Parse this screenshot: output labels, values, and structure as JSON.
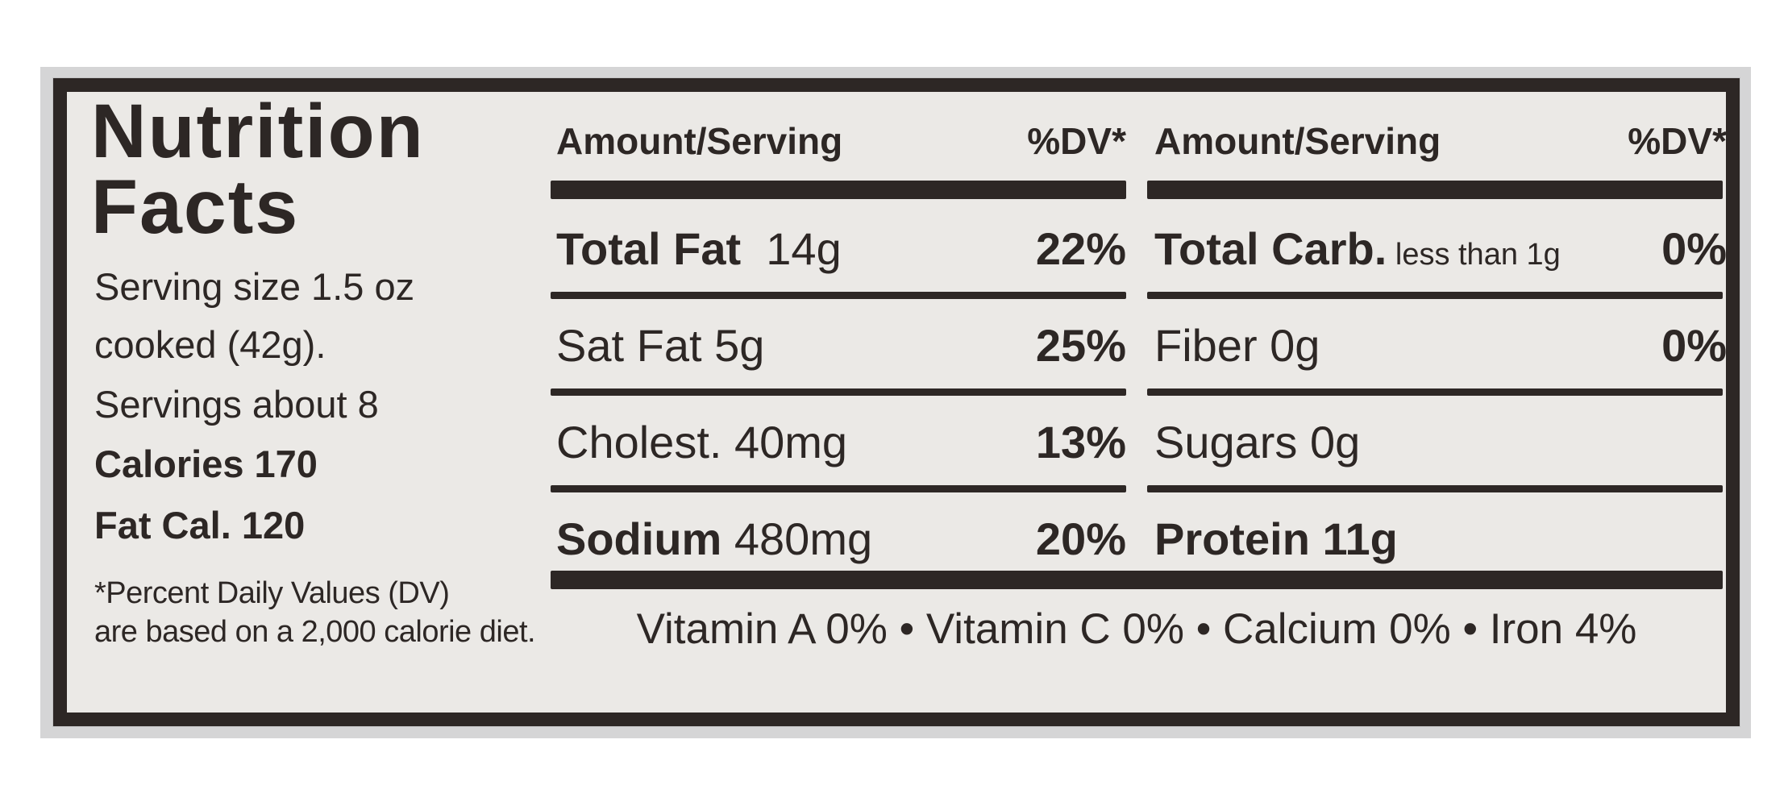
{
  "colors": {
    "ink": "#2d2725",
    "paper": "#ebe9e6",
    "backdrop": "#d5d5d6",
    "page": "#ffffff"
  },
  "label": {
    "title_line1": "Nutrition",
    "title_line2": "Facts",
    "serving_size_line1": "Serving size 1.5 oz",
    "serving_size_line2": "cooked (42g).",
    "servings": "Servings about 8",
    "calories": "Calories 170",
    "fat_calories": "Fat Cal. 120",
    "footnote_line1": "*Percent Daily Values (DV)",
    "footnote_line2": "are based on a 2,000 calorie diet.",
    "vitamins": "Vitamin A 0% • Vitamin C 0% • Calcium 0% • Iron 4%",
    "columns": [
      {
        "header_amount": "Amount/Serving",
        "header_dv": "%DV*",
        "rows": [
          {
            "bold": "Total Fat",
            "reg": "  14g",
            "small": "",
            "dv": "22%"
          },
          {
            "bold": "",
            "reg": "Sat Fat 5g",
            "small": "",
            "dv": "25%"
          },
          {
            "bold": "",
            "reg": "Cholest. 40mg",
            "small": "",
            "dv": "13%"
          },
          {
            "bold": "Sodium",
            "reg": " 480mg",
            "small": "",
            "dv": "20%"
          }
        ]
      },
      {
        "header_amount": "Amount/Serving",
        "header_dv": "%DV*",
        "rows": [
          {
            "bold": "Total Carb.",
            "reg": "",
            "small": " less than 1g",
            "dv": "0%"
          },
          {
            "bold": "",
            "reg": "Fiber 0g",
            "small": "",
            "dv": "0%"
          },
          {
            "bold": "",
            "reg": "Sugars 0g",
            "small": "",
            "dv": ""
          },
          {
            "bold": "Protein 11g",
            "reg": "",
            "small": "",
            "dv": ""
          }
        ]
      }
    ]
  }
}
